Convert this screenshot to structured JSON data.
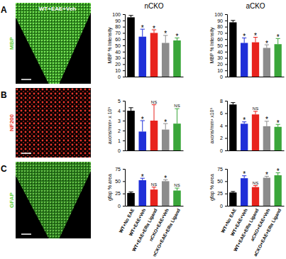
{
  "figure": {
    "image_title": "WT+EAE+Veh",
    "panels": [
      {
        "letter": "A",
        "stain": "MBP",
        "color": "#5fd03a"
      },
      {
        "letter": "B",
        "stain": "NF200",
        "color": "#e8352a"
      },
      {
        "letter": "C",
        "stain": "GFAP",
        "color": "#5fd03a"
      }
    ]
  },
  "chart_data": [
    {
      "type": "bar",
      "title": "nCKO",
      "y_label": "MBP % Intensity",
      "categories": [
        null,
        null,
        null,
        null,
        null
      ],
      "values": [
        95,
        64,
        70,
        54,
        58
      ],
      "errors": [
        3,
        12,
        5,
        12,
        4
      ],
      "annotations": [
        null,
        "*",
        "*",
        "*",
        "*"
      ],
      "colors": [
        "#000000",
        "#1f2fd8",
        "#e8231d",
        "#8c8c8c",
        "#3aa63a"
      ],
      "ylim": [
        0,
        100
      ],
      "yticks": [
        0,
        10,
        20,
        30,
        40,
        50,
        60,
        70,
        80,
        90,
        100
      ]
    },
    {
      "type": "bar",
      "title": "aCKO",
      "y_label": "MBP % Intensity",
      "categories": [
        null,
        null,
        null,
        null,
        null
      ],
      "values": [
        87,
        54,
        55,
        46,
        52
      ],
      "errors": [
        3,
        8,
        8,
        5,
        9
      ],
      "annotations": [
        null,
        "*",
        "*",
        "*",
        "*"
      ],
      "colors": [
        "#000000",
        "#1f2fd8",
        "#e8231d",
        "#8c8c8c",
        "#3aa63a"
      ],
      "ylim": [
        0,
        100
      ],
      "yticks": [
        0,
        10,
        20,
        30,
        40,
        50,
        60,
        70,
        80,
        90,
        100
      ]
    },
    {
      "type": "bar",
      "y_label": "axons/mm³ x 10⁵",
      "categories": [
        null,
        null,
        null,
        null,
        null
      ],
      "values": [
        4.0,
        1.9,
        3.0,
        2.1,
        2.7
      ],
      "errors": [
        0.3,
        1.1,
        1.6,
        0.6,
        1.5
      ],
      "annotations": [
        null,
        "*",
        "NS",
        "*",
        "NS"
      ],
      "colors": [
        "#000000",
        "#1f2fd8",
        "#e8231d",
        "#8c8c8c",
        "#3aa63a"
      ],
      "ylim": [
        0,
        5
      ],
      "yticks": [
        0,
        1,
        2,
        3,
        4,
        5
      ]
    },
    {
      "type": "bar",
      "y_label": "axons/mm³ x10⁵",
      "categories": [
        null,
        null,
        null,
        null,
        null
      ],
      "values": [
        7.4,
        4.3,
        5.8,
        3.9,
        3.8
      ],
      "errors": [
        0.3,
        0.3,
        0.5,
        0.8,
        0.4
      ],
      "annotations": [
        null,
        "*",
        "NS",
        "*",
        "*"
      ],
      "colors": [
        "#000000",
        "#1f2fd8",
        "#e8231d",
        "#8c8c8c",
        "#3aa63a"
      ],
      "ylim": [
        0,
        8
      ],
      "yticks": [
        0,
        2,
        4,
        6,
        8
      ]
    },
    {
      "type": "bar",
      "y_label": "gfap % area",
      "categories": [
        "WT+No EAE",
        "WT+EAE+Veh",
        "WT+EAE+ERα Ligand",
        "nCKO+EAE+Veh",
        "nCKO+EAE+ERα Ligand"
      ],
      "values": [
        26,
        52,
        33,
        50,
        31
      ],
      "errors": [
        2,
        4,
        5,
        3,
        5
      ],
      "annotations": [
        null,
        "*",
        "NS",
        "*",
        "NS"
      ],
      "colors": [
        "#000000",
        "#1f2fd8",
        "#e8231d",
        "#8c8c8c",
        "#3aa63a"
      ],
      "ylim": [
        0,
        75
      ],
      "yticks": [
        0,
        25,
        50,
        75
      ]
    },
    {
      "type": "bar",
      "y_label": "gfap % area",
      "categories": [
        "WT+No EAE",
        "WT+EAE+Veh",
        "WT+EAE+ERα Ligand",
        "aCKO+EAE+Veh",
        "aCKO+EAE+ERα Ligand"
      ],
      "values": [
        27,
        56,
        38,
        57,
        62
      ],
      "errors": [
        2,
        5,
        3,
        3,
        5
      ],
      "annotations": [
        null,
        "*",
        "NS",
        "*",
        "*"
      ],
      "colors": [
        "#000000",
        "#1f2fd8",
        "#e8231d",
        "#8c8c8c",
        "#3aa63a"
      ],
      "ylim": [
        0,
        75
      ],
      "yticks": [
        0,
        25,
        50,
        75
      ]
    }
  ]
}
